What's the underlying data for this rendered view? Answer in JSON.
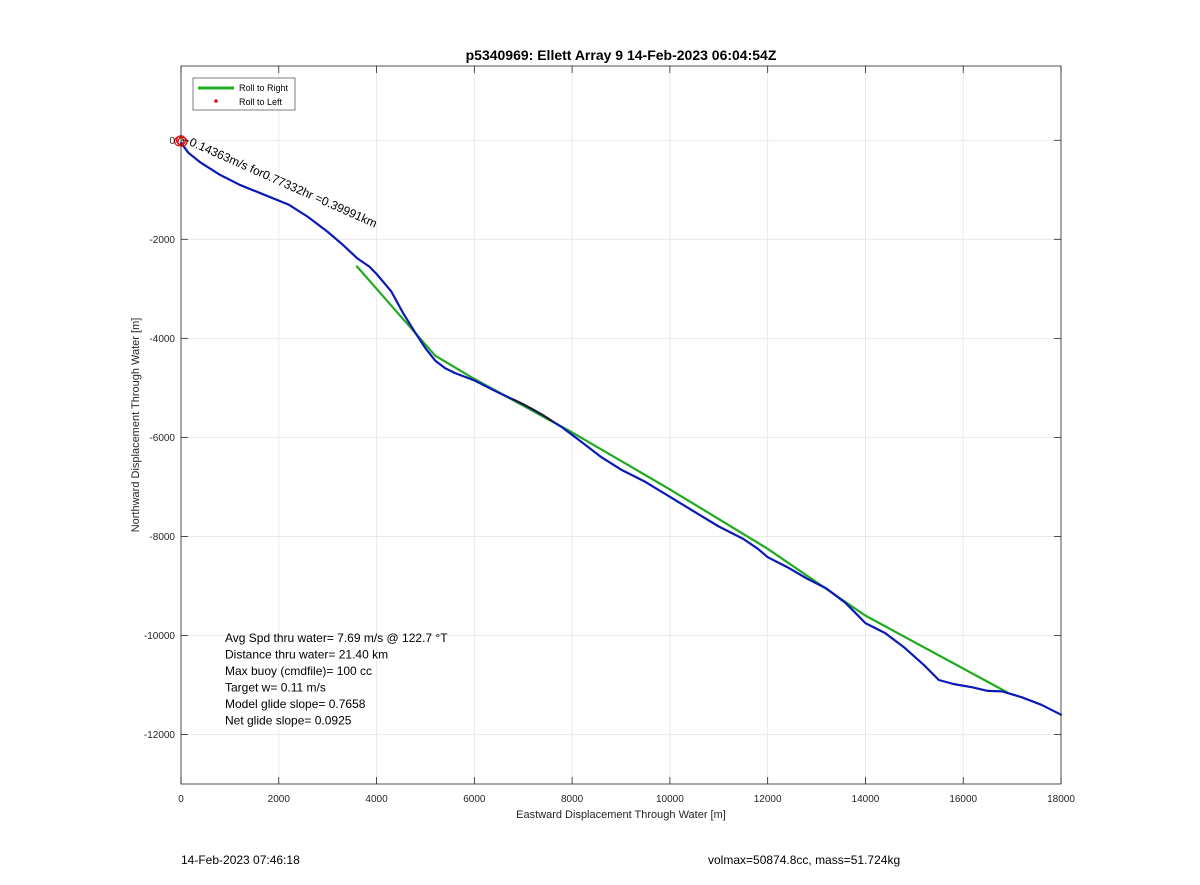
{
  "header": {
    "title": "p5340969: Ellett Array 9 14-Feb-2023 06:04:54Z"
  },
  "footer": {
    "timestamp": "14-Feb-2023 07:46:18",
    "vol_mass": "volmax=50874.8cc, mass=51.724kg"
  },
  "colors": {
    "track": "#0a1ab4",
    "roll_right": "#1faa1f",
    "roll_left": "#e01010",
    "dark_segment": "#1a1a1a",
    "grid": "#e6e6e6",
    "axis": "#262626"
  },
  "chart_data": {
    "type": "line",
    "title": "p5340969: Ellett Array 9 14-Feb-2023 06:04:54Z",
    "xlabel": "Eastward Displacement Through Water [m]",
    "ylabel": "Northward Displacement Through Water [m]",
    "xlim": [
      0,
      18000
    ],
    "ylim": [
      -13000,
      1500
    ],
    "xticks": [
      0,
      2000,
      4000,
      6000,
      8000,
      10000,
      12000,
      14000,
      16000,
      18000
    ],
    "yticks": [
      -12000,
      -10000,
      -8000,
      -6000,
      -4000,
      -2000,
      0
    ],
    "grid": true,
    "legend_position": "top-left",
    "legend": [
      {
        "name": "Roll to Right",
        "style": "line",
        "color": "#1faa1f"
      },
      {
        "name": "Roll to Left",
        "style": "dot",
        "color": "#e01010"
      }
    ],
    "series": [
      {
        "name": "Roll to Right",
        "color": "#1faa1f",
        "x": [
          3600,
          5200,
          6000,
          8000,
          10000,
          12000,
          14000,
          16900
        ],
        "y": [
          -2550,
          -4350,
          -4820,
          -5900,
          -7050,
          -8250,
          -9600,
          -11150
        ]
      },
      {
        "color": "#0a1ab4",
        "x": [
          0,
          150,
          400,
          800,
          1200,
          1700,
          2200,
          2600,
          3000,
          3300,
          3600,
          3850,
          4000,
          4300,
          4550,
          4800,
          5000,
          5200,
          5400,
          5600,
          6000,
          6500,
          7000,
          7400,
          7800,
          8200,
          8600,
          9000,
          9500,
          10000,
          10500,
          11000,
          11500,
          11800,
          12000,
          12400,
          12800,
          13200,
          13600,
          13800,
          14000,
          14400,
          14800,
          15200,
          15500,
          15800,
          16200,
          16500,
          16800,
          17200,
          17600,
          18000
        ],
        "y": [
          -50,
          -250,
          -450,
          -700,
          -900,
          -1100,
          -1300,
          -1550,
          -1850,
          -2100,
          -2380,
          -2550,
          -2700,
          -3050,
          -3500,
          -3900,
          -4200,
          -4450,
          -4600,
          -4700,
          -4850,
          -5100,
          -5330,
          -5550,
          -5800,
          -6100,
          -6400,
          -6650,
          -6900,
          -7200,
          -7500,
          -7800,
          -8050,
          -8250,
          -8420,
          -8620,
          -8850,
          -9050,
          -9350,
          -9550,
          -9750,
          -9950,
          -10250,
          -10600,
          -10900,
          -10980,
          -11050,
          -11120,
          -11130,
          -11250,
          -11400,
          -11600
        ]
      },
      {
        "color": "#1a1a1a",
        "x": [
          6800,
          7000,
          7200,
          7400,
          7600
        ],
        "y": [
          -5230,
          -5330,
          -5430,
          -5550,
          -5680
        ]
      }
    ],
    "markers": [
      {
        "type": "circle",
        "color": "#e01010",
        "x": 0,
        "y": 0
      },
      {
        "type": "circle",
        "color": "#e01010",
        "x": -40,
        "y": -20
      },
      {
        "type": "circle",
        "color": "#e01010",
        "x": 30,
        "y": -30
      }
    ],
    "annotations": [
      {
        "text": "·0.14363m/s for0.77332hr =0.39991km",
        "x": 80,
        "y": -60,
        "rotation": 24
      }
    ],
    "stats": [
      "Avg Spd thru water=  7.69 m/s @ 122.7 °T",
      "Distance thru water= 21.40 km",
      "Max buoy (cmdfile)= 100 cc",
      "Target w= 0.11 m/s",
      "Model glide slope= 0.7658",
      "Net glide slope= 0.0925"
    ]
  }
}
